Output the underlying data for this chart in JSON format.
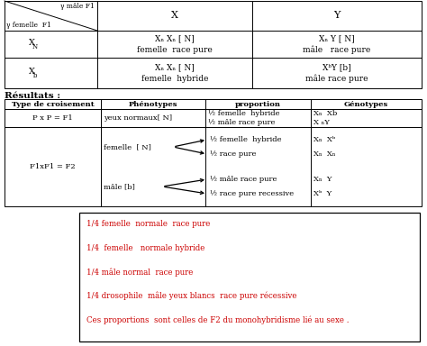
{
  "background": "#ffffff",
  "top_table": {
    "ymale": "γ mâle F1",
    "yfemelle": "γ femelle  F1",
    "header_X": "X",
    "header_Y": "Y",
    "r1_label_main": "X",
    "r1_label_sub": "N",
    "r1_c1_line1": "Xₙ Xₙ [ N]",
    "r1_c1_line2": "femelle  race pure",
    "r1_c2_line1": "Xₙ Y [ N]",
    "r1_c2_line2": "mâle   race pure",
    "r2_label_main": "X",
    "r2_label_sub": "b",
    "r2_c1_line1": "Xₙ Xₙ [ N]",
    "r2_c1_line2": "femelle  hybride",
    "r2_c2_line1": "XᵇY [b]",
    "r2_c2_line2": "mâle race pure"
  },
  "resultats_label": "Résultats :",
  "results_table": {
    "headers": [
      "Type de croisement",
      "Phénotypes",
      "proportion",
      "Génotypes"
    ],
    "r1_type": "P x P = F1",
    "r1_phenotype": "yeux normaux[ N]",
    "r1_prop1": "½ femelle  hybride",
    "r1_prop2": "½ mâle race pure",
    "r1_gen1": "Xₙ  Xb",
    "r1_gen2": "X ₙY",
    "r2_type": "F1xF1 = F2",
    "r2_phen_f": "femelle  [ N]",
    "r2_phen_m": "mâle [b]",
    "r2_prop_f1": "½ femelle  hybride",
    "r2_prop_f2": "½ race pure",
    "r2_prop_m1": "½ mâle race pure",
    "r2_prop_m2": "½ race pure recessive",
    "r2_gen_f1": "Xₙ  Xᵇ",
    "r2_gen_f2": "Xₙ  Xₙ",
    "r2_gen_m1": "Xₙ  Y",
    "r2_gen_m2": "Xᵇ  Y"
  },
  "box_lines": [
    "1/4 femelle  normale  race pure",
    "1/4  femelle   normale hybride",
    "1/4 mâle normal  race pure",
    "1/4 drosophile  mâle yeux blancs  race pure récessive",
    "Ces proportions  sont celles de F2 du monohybridisme lié au sexe ."
  ],
  "box_color": "#cc0000"
}
